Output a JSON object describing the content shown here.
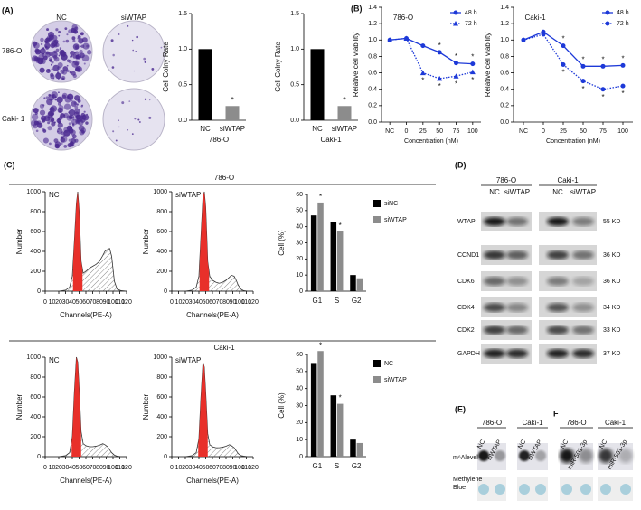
{
  "panels": {
    "a": "(A)",
    "b": "(B)",
    "c": "(C)",
    "d": "(D)",
    "e": "(E)",
    "f": "F"
  },
  "colony": {
    "columns": [
      "NC",
      "siWTAP"
    ],
    "rows": [
      "786-O",
      "Caki- 1"
    ]
  },
  "flow_headers": [
    "786-O",
    "Caki-1"
  ],
  "blot": {
    "groups": [
      "786-O",
      "Caki-1"
    ],
    "lanes": [
      "NC",
      "siWTAP",
      "NC",
      "siWTAP"
    ],
    "rows": [
      {
        "protein": "WTAP",
        "size": "55 KD"
      },
      {
        "protein": "CCND1",
        "size": "36 KD"
      },
      {
        "protein": "CDK6",
        "size": "36 KD"
      },
      {
        "protein": "CDK4",
        "size": "34 KD"
      },
      {
        "protein": "CDK2",
        "size": "33 KD"
      },
      {
        "protein": "GAPDH",
        "size": "37 KD"
      }
    ]
  },
  "dot_blot": {
    "e_groups": [
      "786-O",
      "Caki-1"
    ],
    "e_lanes": [
      "NC",
      "siWTAP",
      "NC",
      "siWTAP"
    ],
    "f_groups": [
      "786-O",
      "Caki-1"
    ],
    "f_lanes": [
      "NC",
      "miR-501-3p",
      "NC",
      "miR-501-3p"
    ],
    "rows": [
      "m⁶Alevel",
      "Methylene Blue"
    ]
  },
  "chart_data": [
    {
      "type": "bar",
      "ylabel": "Cell Colny Rate",
      "categories": [
        "NC",
        "siWTAP"
      ],
      "xlabel": "786-O",
      "values": [
        1.0,
        0.2
      ],
      "colors": [
        "#000000",
        "#8c8c8c"
      ],
      "ylim": [
        0,
        1.5
      ],
      "yticks": [
        {
          "value": 0,
          "label": "0.0"
        },
        0.5,
        {
          "value": 1,
          "label": "1.0"
        },
        1.5
      ],
      "significance": [
        null,
        "*"
      ]
    },
    {
      "type": "bar",
      "ylabel": "Cell Colny Rate",
      "categories": [
        "NC",
        "siWTAP"
      ],
      "xlabel": "Caki-1",
      "values": [
        1.0,
        0.2
      ],
      "colors": [
        "#000000",
        "#8c8c8c"
      ],
      "ylim": [
        0,
        1.5
      ],
      "yticks": [
        {
          "value": 0,
          "label": "0.0"
        },
        0.5,
        {
          "value": 1,
          "label": "1.0"
        },
        1.5
      ],
      "significance": [
        null,
        "*"
      ]
    },
    {
      "type": "line",
      "title": "786-O",
      "ylabel": "Relative cell viability",
      "xlabel": "Concentration (nM)",
      "categories": [
        "NC",
        "0",
        "25",
        "50",
        "75",
        "100"
      ],
      "ylim": [
        0,
        1.4
      ],
      "yticks": [
        {
          "value": 0,
          "label": "0.0"
        },
        0.2,
        0.4,
        0.6,
        0.8,
        {
          "value": 1,
          "label": "1.0"
        },
        1.2,
        1.4
      ],
      "legend": "upper right",
      "series": [
        {
          "name": "48 h",
          "color": "#1d39d8",
          "style": "solid",
          "marker": "circle",
          "values": [
            1.0,
            1.02,
            0.93,
            0.85,
            0.72,
            0.71
          ],
          "significance": [
            null,
            null,
            null,
            "*",
            "*",
            "*"
          ]
        },
        {
          "name": "72 h",
          "color": "#1d39d8",
          "style": "dotted",
          "marker": "triangle",
          "values": [
            1.0,
            1.02,
            0.6,
            0.53,
            0.56,
            0.61
          ],
          "significance": [
            null,
            null,
            "*",
            "*",
            "*",
            "*"
          ]
        }
      ]
    },
    {
      "type": "line",
      "title": "Caki-1",
      "ylabel": "Relative cell viability",
      "xlabel": "Concentration (nM)",
      "categories": [
        "NC",
        "0",
        "25",
        "50",
        "75",
        "100"
      ],
      "ylim": [
        0,
        1.4
      ],
      "yticks": [
        {
          "value": 0,
          "label": "0.0"
        },
        0.2,
        0.4,
        0.6,
        0.8,
        {
          "value": 1,
          "label": "1.0"
        },
        1.2,
        1.4
      ],
      "legend": "upper right",
      "series": [
        {
          "name": "48 h",
          "color": "#1d39d8",
          "style": "solid",
          "marker": "circle",
          "values": [
            1.0,
            1.1,
            0.93,
            0.68,
            0.68,
            0.69
          ],
          "significance": [
            null,
            null,
            "*",
            "*",
            "*",
            "*"
          ]
        },
        {
          "name": "72 h",
          "color": "#1d39d8",
          "style": "dotted",
          "marker": "circle",
          "values": [
            1.0,
            1.07,
            0.7,
            0.5,
            0.4,
            0.44
          ],
          "significance": [
            null,
            null,
            "*",
            "*",
            "*",
            "*"
          ]
        }
      ]
    },
    {
      "type": "area",
      "title": "NC",
      "xlabel": "Channels(PE-A)",
      "ylabel": "Number",
      "color": "#e8302a",
      "x": [
        20,
        30,
        36,
        40,
        43,
        46,
        48,
        50,
        53,
        56,
        60,
        65,
        70,
        75,
        80,
        85,
        88,
        92,
        95,
        98,
        102,
        106,
        112,
        120
      ],
      "values": [
        0,
        10,
        40,
        150,
        500,
        880,
        1000,
        820,
        300,
        180,
        200,
        230,
        250,
        270,
        300,
        360,
        400,
        420,
        430,
        350,
        100,
        20,
        5,
        0
      ],
      "xlim": [
        0,
        120
      ],
      "xticks": [
        0,
        10,
        20,
        30,
        40,
        50,
        60,
        70,
        80,
        90,
        100,
        110,
        120
      ],
      "ylim": [
        0,
        1000
      ],
      "yticks": [
        0,
        200,
        400,
        600,
        800,
        1000
      ]
    },
    {
      "type": "area",
      "title": "siWTAP",
      "xlabel": "Channels(PE-A)",
      "ylabel": "Number",
      "color": "#e8302a",
      "x": [
        20,
        30,
        36,
        40,
        43,
        46,
        48,
        50,
        53,
        56,
        60,
        65,
        70,
        75,
        80,
        85,
        88,
        92,
        95,
        98,
        102,
        106,
        112,
        120
      ],
      "values": [
        0,
        10,
        40,
        150,
        550,
        950,
        1000,
        850,
        300,
        150,
        110,
        90,
        80,
        90,
        110,
        140,
        160,
        150,
        110,
        60,
        20,
        5,
        0,
        0
      ],
      "xlim": [
        0,
        120
      ],
      "xticks": [
        0,
        10,
        20,
        30,
        40,
        50,
        60,
        70,
        80,
        90,
        100,
        110,
        120
      ],
      "ylim": [
        0,
        1000
      ],
      "yticks": [
        0,
        200,
        400,
        600,
        800,
        1000
      ]
    },
    {
      "type": "grouped-bar",
      "ylabel": "Cell (%)",
      "categories": [
        "G1",
        "S",
        "G2"
      ],
      "ylim": [
        0,
        60
      ],
      "yticks": [
        0,
        10,
        20,
        30,
        40,
        50,
        60
      ],
      "series": [
        {
          "name": "siNC",
          "color": "#000000",
          "values": [
            47,
            43,
            10
          ]
        },
        {
          "name": "siWTAP",
          "color": "#8c8c8c",
          "values": [
            55,
            37,
            8
          ],
          "significance": [
            "*",
            "*",
            null
          ]
        }
      ]
    },
    {
      "type": "area",
      "title": "NC",
      "xlabel": "Channels(PE-A)",
      "ylabel": "Number",
      "color": "#e8302a",
      "x": [
        20,
        30,
        36,
        40,
        43,
        46,
        48,
        50,
        53,
        56,
        60,
        65,
        70,
        75,
        80,
        85,
        88,
        92,
        95,
        98,
        102,
        106,
        112,
        120
      ],
      "values": [
        0,
        10,
        40,
        200,
        650,
        1000,
        950,
        700,
        250,
        130,
        110,
        100,
        100,
        105,
        115,
        130,
        120,
        100,
        70,
        40,
        15,
        5,
        0,
        0
      ],
      "xlim": [
        0,
        120
      ],
      "xticks": [
        0,
        10,
        20,
        30,
        40,
        50,
        60,
        70,
        80,
        90,
        100,
        110,
        120
      ],
      "ylim": [
        0,
        1000
      ],
      "yticks": [
        0,
        200,
        400,
        600,
        800,
        1000
      ]
    },
    {
      "type": "area",
      "title": "siWTAP",
      "xlabel": "Channels(PE-A)",
      "ylabel": "Number",
      "color": "#e8302a",
      "x": [
        20,
        30,
        36,
        40,
        43,
        46,
        48,
        50,
        53,
        56,
        60,
        65,
        70,
        75,
        80,
        85,
        88,
        92,
        95,
        98,
        102,
        106,
        112,
        120
      ],
      "values": [
        0,
        10,
        40,
        180,
        600,
        950,
        900,
        650,
        230,
        120,
        100,
        90,
        90,
        95,
        105,
        120,
        110,
        90,
        60,
        30,
        10,
        5,
        0,
        0
      ],
      "xlim": [
        0,
        120
      ],
      "xticks": [
        0,
        10,
        20,
        30,
        40,
        50,
        60,
        70,
        80,
        90,
        100,
        110,
        120
      ],
      "ylim": [
        0,
        1000
      ],
      "yticks": [
        0,
        200,
        400,
        600,
        800,
        1000
      ]
    },
    {
      "type": "grouped-bar",
      "ylabel": "Cell (%)",
      "categories": [
        "G1",
        "S",
        "G2"
      ],
      "ylim": [
        0,
        60
      ],
      "yticks": [
        0,
        10,
        20,
        30,
        40,
        50,
        60
      ],
      "series": [
        {
          "name": "NC",
          "color": "#000000",
          "values": [
            55,
            36,
            10
          ]
        },
        {
          "name": "siWTAP",
          "color": "#8c8c8c",
          "values": [
            62,
            31,
            8
          ],
          "significance": [
            "*",
            "*",
            null
          ]
        }
      ]
    }
  ]
}
